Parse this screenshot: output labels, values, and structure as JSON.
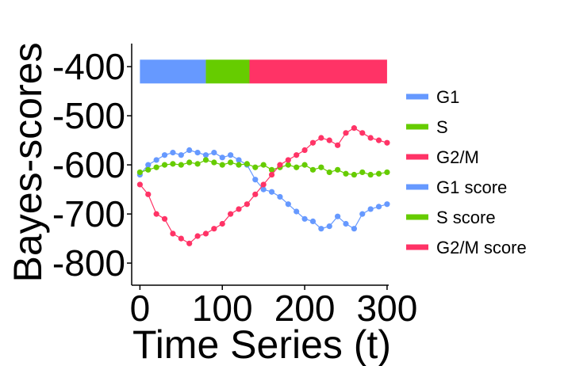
{
  "chart_data": {
    "type": "line",
    "xlabel": "Time Series (t)",
    "ylabel": "Bayes-scores",
    "xlim": [
      -10,
      302
    ],
    "ylim": [
      -845,
      -353
    ],
    "xticks": [
      0,
      100,
      200,
      300
    ],
    "yticks": [
      -400,
      -500,
      -600,
      -700,
      -800
    ],
    "xtick_labels": [
      "0",
      "100",
      "200",
      "300"
    ],
    "ytick_labels": [
      "-400",
      "-500",
      "-600",
      "-700",
      "-800"
    ],
    "grid": false,
    "legend_position": "right",
    "phase_bar": {
      "y_center": -410,
      "segments": [
        {
          "name": "G1",
          "start": 0,
          "end": 80,
          "color": "#6699ff"
        },
        {
          "name": "S",
          "start": 80,
          "end": 133,
          "color": "#66cc00"
        },
        {
          "name": "G2/M",
          "start": 133,
          "end": 300,
          "color": "#ff3366"
        }
      ]
    },
    "series": [
      {
        "name": "G1 score",
        "color": "#6699ff",
        "x": [
          0,
          10,
          20,
          30,
          40,
          50,
          60,
          70,
          80,
          90,
          100,
          110,
          120,
          130,
          140,
          150,
          160,
          170,
          180,
          190,
          200,
          210,
          220,
          230,
          240,
          250,
          260,
          270,
          280,
          290,
          300
        ],
        "values": [
          -620,
          -600,
          -590,
          -580,
          -575,
          -580,
          -570,
          -575,
          -580,
          -575,
          -585,
          -580,
          -590,
          -600,
          -630,
          -650,
          -655,
          -665,
          -680,
          -695,
          -710,
          -715,
          -730,
          -725,
          -705,
          -720,
          -730,
          -700,
          -690,
          -685,
          -680
        ]
      },
      {
        "name": "S score",
        "color": "#66cc00",
        "x": [
          0,
          10,
          20,
          30,
          40,
          50,
          60,
          70,
          80,
          90,
          100,
          110,
          120,
          130,
          140,
          150,
          160,
          170,
          180,
          190,
          200,
          210,
          220,
          230,
          240,
          250,
          260,
          270,
          280,
          290,
          300
        ],
        "values": [
          -615,
          -610,
          -605,
          -600,
          -598,
          -600,
          -595,
          -598,
          -590,
          -595,
          -600,
          -595,
          -600,
          -598,
          -605,
          -600,
          -610,
          -605,
          -600,
          -605,
          -600,
          -610,
          -605,
          -615,
          -610,
          -618,
          -620,
          -615,
          -620,
          -618,
          -615
        ]
      },
      {
        "name": "G2/M score",
        "color": "#ff3366",
        "x": [
          0,
          10,
          20,
          30,
          40,
          50,
          60,
          70,
          80,
          90,
          100,
          110,
          120,
          130,
          140,
          150,
          160,
          170,
          180,
          190,
          200,
          210,
          220,
          230,
          240,
          250,
          260,
          270,
          280,
          290,
          300
        ],
        "values": [
          -640,
          -660,
          -700,
          -710,
          -740,
          -750,
          -760,
          -745,
          -740,
          -730,
          -720,
          -700,
          -690,
          -680,
          -660,
          -640,
          -620,
          -600,
          -590,
          -580,
          -570,
          -555,
          -545,
          -550,
          -560,
          -535,
          -525,
          -535,
          -545,
          -550,
          -555
        ]
      }
    ],
    "legend": [
      {
        "label": "G1",
        "color": "#6699ff"
      },
      {
        "label": "S",
        "color": "#66cc00"
      },
      {
        "label": "G2/M",
        "color": "#ff3366"
      },
      {
        "label": "G1 score",
        "color": "#6699ff"
      },
      {
        "label": "S score",
        "color": "#66cc00"
      },
      {
        "label": "G2/M score",
        "color": "#ff3366"
      }
    ]
  }
}
